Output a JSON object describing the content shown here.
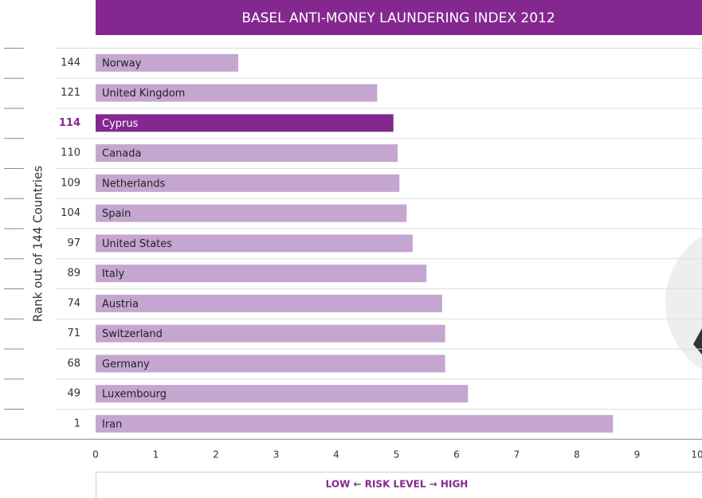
{
  "chart_data": {
    "type": "bar",
    "orientation": "horizontal",
    "title": "BASEL ANTI-MONEY LAUNDERING INDEX 2012",
    "ylabel": "Rank out of 144 Countries",
    "xlabel": "LOW ← RISK LEVEL → HIGH",
    "categories": [
      "Norway",
      "United Kingdom",
      "Cyprus",
      "Canada",
      "Netherlands",
      "Spain",
      "United States",
      "Italy",
      "Austria",
      "Switzerland",
      "Germany",
      "Luxembourg",
      "Iran"
    ],
    "ranks": [
      144,
      121,
      114,
      110,
      109,
      104,
      97,
      89,
      74,
      71,
      68,
      49,
      1
    ],
    "values": [
      2.37,
      4.68,
      4.95,
      5.02,
      5.05,
      5.17,
      5.27,
      5.5,
      5.76,
      5.81,
      5.81,
      6.19,
      8.6
    ],
    "color": "#c4a6d0",
    "highlight": "Cyprus",
    "highlight_color": "#84288f",
    "xlim": [
      0,
      10
    ],
    "xticks": [
      0,
      1,
      2,
      3,
      4,
      5,
      6,
      7,
      8,
      9,
      10
    ]
  }
}
